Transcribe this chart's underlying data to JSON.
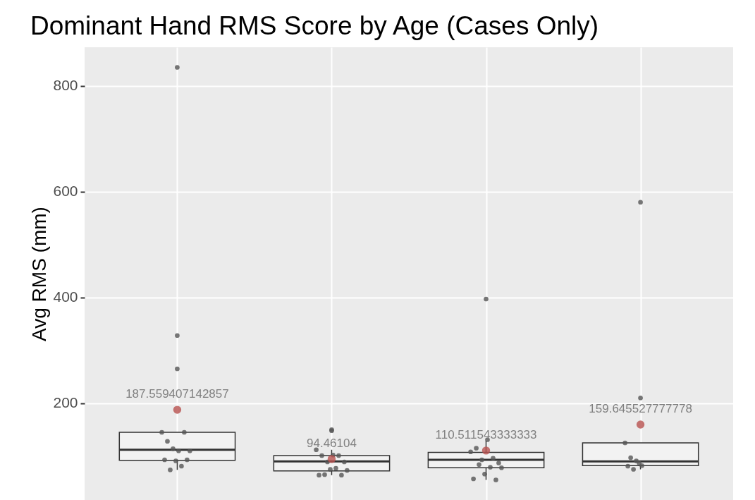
{
  "chart_data": {
    "type": "box",
    "title": "Dominant Hand RMS Score by Age (Cases Only)",
    "ylabel": "Avg RMS (mm)",
    "categories": [
      null,
      null,
      null,
      null
    ],
    "boxes": [
      {
        "low": 74,
        "q1": 92,
        "median": 112,
        "q3": 145,
        "high": 145,
        "outliers": [
          835,
          328,
          265
        ]
      },
      {
        "low": 64,
        "q1": 72,
        "median": 90,
        "q3": 101,
        "high": 112,
        "outliers": [
          150,
          148
        ]
      },
      {
        "low": 55,
        "q1": 78,
        "median": 93,
        "q3": 107,
        "high": 129,
        "outliers": [
          397
        ]
      },
      {
        "low": 75,
        "q1": 82,
        "median": 90,
        "q3": 125,
        "high": 125,
        "outliers": [
          580,
          210
        ]
      }
    ],
    "series": [
      {
        "type": "scatter",
        "color": "#555555",
        "values": [
          145,
          112,
          108,
          125
        ]
      },
      {
        "type": "scatter",
        "color": "#555555",
        "values": [
          93,
          64,
          57,
          81
        ]
      },
      {
        "type": "scatter",
        "color": "#555555",
        "values": [
          128,
          101,
          115,
          97
        ]
      },
      {
        "type": "scatter",
        "color": "#555555",
        "values": [
          74,
          65,
          84,
          75
        ]
      },
      {
        "type": "scatter",
        "color": "#555555",
        "values": [
          114,
          89,
          93,
          91
        ]
      },
      {
        "type": "scatter",
        "color": "#555555",
        "values": [
          91,
          75,
          66,
          87
        ]
      },
      {
        "type": "scatter",
        "color": "#555555",
        "values": [
          110,
          102,
          131,
          82
        ]
      },
      {
        "type": "scatter",
        "color": "#555555",
        "values": [
          81,
          77,
          79,
          null
        ]
      },
      {
        "type": "scatter",
        "color": "#555555",
        "values": [
          145,
          101,
          96,
          null
        ]
      },
      {
        "type": "scatter",
        "color": "#555555",
        "values": [
          93,
          64,
          55,
          null
        ]
      },
      {
        "type": "scatter",
        "color": "#555555",
        "values": [
          110,
          89,
          87,
          null
        ]
      },
      {
        "type": "scatter",
        "color": "#555555",
        "values": [
          null,
          73,
          78,
          null
        ]
      },
      {
        "type": "scatter",
        "color": "#b8514f",
        "values": [
          187.559407142857,
          94.46104,
          110.511543333333,
          159.645527777778
        ],
        "value_labels": [
          "187.559407142857",
          "94.46104",
          "110.511543333333",
          "159.645527777778"
        ]
      }
    ],
    "ylim": [
      17,
      873
    ],
    "yticks": [
      200,
      400,
      600,
      800
    ],
    "grid": true,
    "tick_labels": "y",
    "marker": "circle"
  }
}
